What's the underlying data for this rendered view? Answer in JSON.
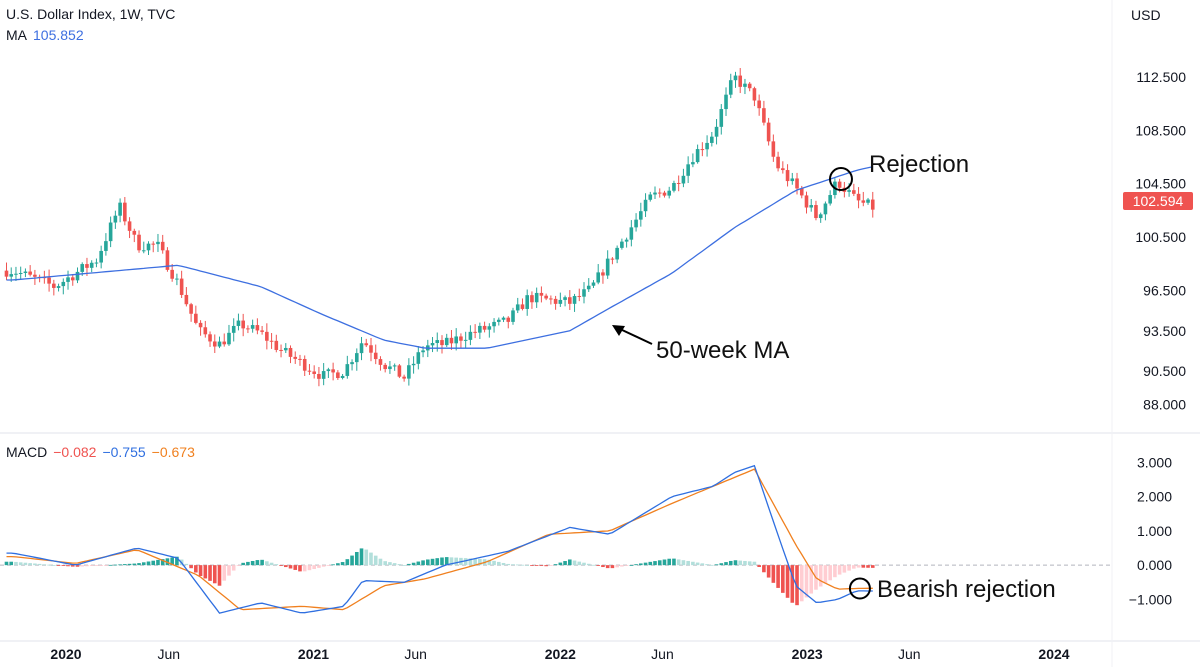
{
  "header": {
    "symbol": "U.S. Dollar Index, 1W, TVC",
    "ma_label": "MA",
    "ma_value": "105.852",
    "currency": "USD",
    "last_price": "102.594",
    "macd_label": "MACD",
    "macd_hist": "−0.082",
    "macd_line": "−0.755",
    "macd_signal": "−0.673"
  },
  "colors": {
    "up": "#26a69a",
    "down": "#ef5350",
    "ma": "#3d6fe0",
    "macd": "#2f6fe0",
    "signal": "#f0801f",
    "hist_up_strong": "#26a69a",
    "hist_up_weak": "#b2dfdb",
    "hist_down_strong": "#ef5350",
    "hist_down_weak": "#ffcdd2"
  },
  "annotations": {
    "rejection": "Rejection",
    "ma50": "50-week MA",
    "bearish": "Bearish rejection"
  },
  "chart_data": [
    {
      "type": "candlestick",
      "title": "U.S. Dollar Index, 1W, TVC",
      "ylabel": "USD",
      "ylim": [
        87.2,
        116
      ],
      "yticks": [
        88.0,
        90.5,
        93.5,
        96.5,
        100.5,
        104.5,
        108.5,
        112.5
      ],
      "xticks": [
        "2020",
        "Jun",
        "2021",
        "Jun",
        "2022",
        "Jun",
        "2023",
        "Jun",
        "2024"
      ],
      "close_keypoints": [
        [
          "2019-10",
          98.0
        ],
        [
          "2019-12",
          96.8
        ],
        [
          "2020-02",
          98.8
        ],
        [
          "2020-03-20",
          102.8
        ],
        [
          "2020-04",
          99.9
        ],
        [
          "2020-05",
          99.9
        ],
        [
          "2020-06",
          97.0
        ],
        [
          "2020-07",
          93.5
        ],
        [
          "2020-08",
          92.5
        ],
        [
          "2020-09",
          94.0
        ],
        [
          "2020-10",
          93.3
        ],
        [
          "2020-11",
          92.0
        ],
        [
          "2021-01",
          90.1
        ],
        [
          "2021-02",
          90.5
        ],
        [
          "2021-03",
          92.8
        ],
        [
          "2021-04",
          91.0
        ],
        [
          "2021-05",
          90.0
        ],
        [
          "2021-06",
          92.4
        ],
        [
          "2021-07",
          92.5
        ],
        [
          "2021-08",
          93.2
        ],
        [
          "2021-10",
          94.2
        ],
        [
          "2021-11",
          96.0
        ],
        [
          "2022-01",
          95.6
        ],
        [
          "2022-02",
          96.6
        ],
        [
          "2022-03",
          98.8
        ],
        [
          "2022-05",
          103.5
        ],
        [
          "2022-06",
          104.2
        ],
        [
          "2022-07",
          106.5
        ],
        [
          "2022-08",
          108.3
        ],
        [
          "2022-09",
          112.5
        ],
        [
          "2022-10",
          111.0
        ],
        [
          "2022-11",
          106.0
        ],
        [
          "2022-12",
          104.2
        ],
        [
          "2023-01",
          102.0
        ],
        [
          "2023-02",
          104.7
        ],
        [
          "2023-03",
          103.2
        ],
        [
          "2023-04",
          102.6
        ]
      ],
      "ma": {
        "name": "MA",
        "period": "50-week",
        "value": 105.852,
        "keypoints": [
          [
            "2019-10",
            97.3
          ],
          [
            "2020-06",
            98.4
          ],
          [
            "2020-10",
            96.8
          ],
          [
            "2021-01",
            94.7
          ],
          [
            "2021-04",
            92.8
          ],
          [
            "2021-06",
            92.2
          ],
          [
            "2021-09",
            92.2
          ],
          [
            "2022-01",
            93.5
          ],
          [
            "2022-03",
            95.2
          ],
          [
            "2022-06",
            97.8
          ],
          [
            "2022-09",
            101.2
          ],
          [
            "2022-12",
            104.0
          ],
          [
            "2023-03",
            105.5
          ],
          [
            "2023-04",
            105.852
          ]
        ]
      },
      "last_value": 102.594
    },
    {
      "type": "macd",
      "title": "MACD",
      "ylim": [
        -1.6,
        3.3
      ],
      "yticks": [
        -1.0,
        0.0,
        1.0,
        2.0,
        3.0
      ],
      "current": {
        "histogram": -0.082,
        "macd": -0.755,
        "signal": -0.673
      },
      "macd_keypoints": [
        [
          "2019-10",
          0.35
        ],
        [
          "2020-01",
          0.0
        ],
        [
          "2020-04",
          0.5
        ],
        [
          "2020-06",
          0.2
        ],
        [
          "2020-08",
          -1.4
        ],
        [
          "2020-10",
          -1.1
        ],
        [
          "2020-12",
          -1.4
        ],
        [
          "2021-02",
          -1.2
        ],
        [
          "2021-03",
          -0.45
        ],
        [
          "2021-05",
          -0.5
        ],
        [
          "2021-07",
          0.0
        ],
        [
          "2021-10",
          0.4
        ],
        [
          "2022-01",
          1.1
        ],
        [
          "2022-03",
          0.9
        ],
        [
          "2022-06",
          2.0
        ],
        [
          "2022-08",
          2.3
        ],
        [
          "2022-09",
          2.7
        ],
        [
          "2022-10",
          2.9
        ],
        [
          "2022-11",
          1.1
        ],
        [
          "2022-12",
          -0.6
        ],
        [
          "2023-01",
          -1.1
        ],
        [
          "2023-02",
          -1.0
        ],
        [
          "2023-03",
          -0.75
        ],
        [
          "2023-04",
          -0.755
        ]
      ],
      "signal_keypoints": [
        [
          "2019-10",
          0.25
        ],
        [
          "2020-01",
          0.05
        ],
        [
          "2020-04",
          0.45
        ],
        [
          "2020-07",
          -0.3
        ],
        [
          "2020-09",
          -1.3
        ],
        [
          "2020-12",
          -1.2
        ],
        [
          "2021-02",
          -1.3
        ],
        [
          "2021-04",
          -0.6
        ],
        [
          "2021-06",
          -0.4
        ],
        [
          "2021-09",
          0.1
        ],
        [
          "2021-12",
          0.9
        ],
        [
          "2022-03",
          1.0
        ],
        [
          "2022-06",
          1.8
        ],
        [
          "2022-08",
          2.3
        ],
        [
          "2022-10",
          2.8
        ],
        [
          "2022-12",
          0.6
        ],
        [
          "2023-01",
          -0.4
        ],
        [
          "2023-02",
          -0.7
        ],
        [
          "2023-03",
          -0.68
        ],
        [
          "2023-04",
          -0.673
        ]
      ]
    }
  ]
}
